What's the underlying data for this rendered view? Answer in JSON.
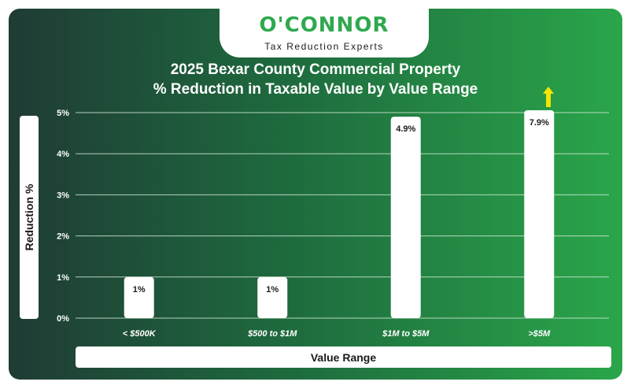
{
  "logo": {
    "name": "O'CONNOR",
    "tagline": "Tax Reduction Experts"
  },
  "chart_data": {
    "type": "bar",
    "title_line1": "2025 Bexar County Commercial Property",
    "title_line2": "% Reduction in Taxable Value by Value Range",
    "xlabel": "Value Range",
    "ylabel": "Reduction %",
    "ylim": [
      0,
      5
    ],
    "yticks": [
      "0%",
      "1%",
      "2%",
      "3%",
      "4%",
      "5%"
    ],
    "categories": [
      "< $500K",
      "$500 to $1M",
      "$1M to $5M",
      ">$5M"
    ],
    "values": [
      1,
      1,
      4.9,
      7.9
    ],
    "data_labels": [
      "1%",
      "1%",
      "4.9%",
      "7.9%"
    ],
    "grid": true,
    "overflow_indicator": {
      "category": ">$5M",
      "color": "#f5e400",
      "icon": "up-arrow-icon"
    },
    "colors": {
      "bar": "#ffffff",
      "grid": "#cfe8d4"
    }
  }
}
